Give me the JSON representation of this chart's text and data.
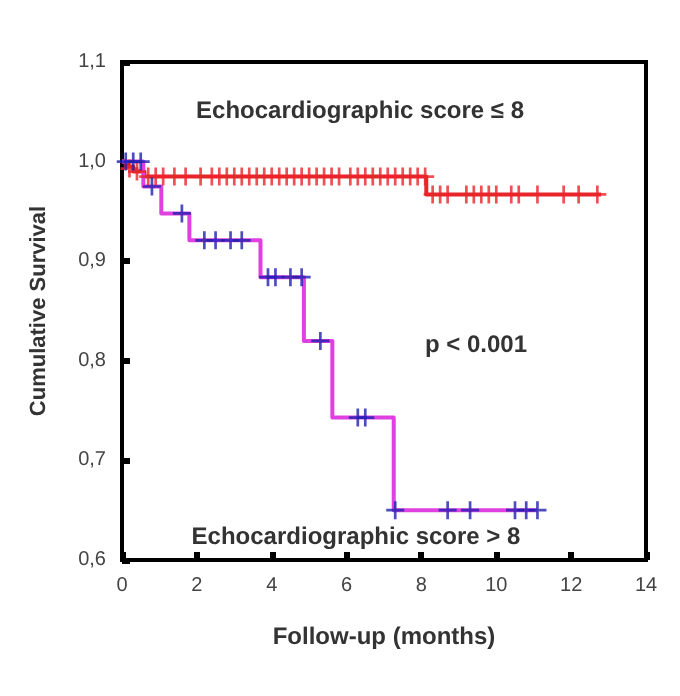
{
  "chart_data": {
    "type": "step",
    "xlabel": "Follow-up (months)",
    "ylabel": "Cumulative Survival",
    "xlim": [
      0,
      14
    ],
    "xticks": [
      0,
      2,
      4,
      6,
      8,
      10,
      12,
      14
    ],
    "ylim": [
      0.6,
      1.1
    ],
    "yticks": [
      {
        "value": 0.6,
        "label": "0,6"
      },
      {
        "value": 0.7,
        "label": "0,7"
      },
      {
        "value": 0.8,
        "label": "0,8"
      },
      {
        "value": 0.9,
        "label": "0,9"
      },
      {
        "value": 1.0,
        "label": "1,0"
      },
      {
        "value": 1.1,
        "label": "1,1"
      }
    ],
    "grid": false,
    "line_style": "solid",
    "annotations": [
      "Echocardiographic score ≤ 8",
      "p < 0.001",
      "Echocardiographic score > 8"
    ],
    "series": [
      {
        "color": "#e8262a",
        "marker": "none",
        "x": [
          0,
          0.1,
          0.3,
          0.6,
          8.13,
          12.8
        ],
        "values": [
          1,
          0.995,
          0.99,
          0.985,
          0.967,
          0.967
        ]
      },
      {
        "color": "#e040e0",
        "marker": "none",
        "x": [
          0,
          0.57,
          1.05,
          1.8,
          3.7,
          4.86,
          5.62,
          7.26,
          11.1
        ],
        "values": [
          1,
          0.975,
          0.948,
          0.921,
          0.884,
          0.82,
          0.743,
          0.65,
          0.65
        ]
      },
      {
        "type": "scatter",
        "color": "#e8262a",
        "marker": "cross",
        "x": [
          0.2,
          0.4,
          0.7,
          0.9,
          1.1,
          1.4,
          1.7,
          2.1,
          2.4,
          2.6,
          2.8,
          3.0,
          3.2,
          3.4,
          3.6,
          3.8,
          4.0,
          4.2,
          4.4,
          4.6,
          4.8,
          5.0,
          5.2,
          5.4,
          5.6,
          5.8,
          6.1,
          6.3,
          6.5,
          6.7,
          6.9,
          7.1,
          7.3,
          7.5,
          7.7,
          7.9,
          8.1
        ],
        "values": [
          0.993,
          0.99,
          0.985,
          0.985,
          0.985,
          0.985,
          0.985,
          0.985,
          0.985,
          0.985,
          0.985,
          0.985,
          0.985,
          0.985,
          0.985,
          0.985,
          0.985,
          0.985,
          0.985,
          0.985,
          0.985,
          0.985,
          0.985,
          0.985,
          0.985,
          0.985,
          0.985,
          0.985,
          0.985,
          0.985,
          0.985,
          0.985,
          0.985,
          0.985,
          0.985,
          0.985,
          0.985
        ]
      },
      {
        "type": "scatter",
        "color": "#e8262a",
        "marker": "cross",
        "x": [
          8.3,
          8.5,
          8.7,
          9.2,
          9.4,
          9.6,
          9.8,
          10.0,
          10.4,
          10.6,
          11.1,
          11.8,
          12.2,
          12.7
        ],
        "values": [
          0.967,
          0.967,
          0.967,
          0.967,
          0.967,
          0.967,
          0.967,
          0.967,
          0.967,
          0.967,
          0.967,
          0.967,
          0.967,
          0.967
        ]
      },
      {
        "type": "scatter",
        "color": "#2020b0",
        "marker": "cross",
        "x": [
          0.1,
          0.3,
          0.5,
          0.8,
          1.6,
          2.2,
          2.5,
          2.9,
          3.2,
          3.9,
          4.1,
          4.5,
          4.8,
          5.3,
          6.3,
          6.5,
          7.3,
          8.7,
          9.3,
          10.5,
          10.8,
          11.1
        ],
        "values": [
          1,
          1,
          1,
          0.975,
          0.948,
          0.921,
          0.921,
          0.921,
          0.921,
          0.884,
          0.884,
          0.884,
          0.884,
          0.82,
          0.743,
          0.743,
          0.65,
          0.65,
          0.65,
          0.65,
          0.65,
          0.65
        ]
      }
    ]
  }
}
